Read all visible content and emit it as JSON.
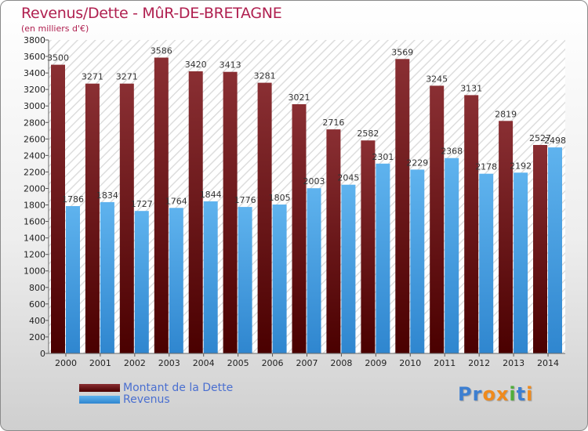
{
  "title": "Revenus/Dette - MûR-DE-BRETAGNE",
  "subtitle": "(en milliers d'€)",
  "colors": {
    "dette": "#7a1f1f",
    "revenus": "#4aa3e3",
    "title": "#b02050"
  },
  "legend": [
    {
      "label": "Montant de la Dette",
      "color": "#7a1f1f"
    },
    {
      "label": "Revenus",
      "color": "#4aa3e3"
    }
  ],
  "logo": "Proxiti",
  "chart_data": {
    "type": "bar",
    "categories": [
      "2000",
      "2001",
      "2002",
      "2003",
      "2004",
      "2005",
      "2006",
      "2007",
      "2008",
      "2009",
      "2010",
      "2011",
      "2012",
      "2013",
      "2014"
    ],
    "series": [
      {
        "name": "Montant de la Dette",
        "values": [
          3500,
          3271,
          3271,
          3586,
          3420,
          3413,
          3281,
          3021,
          2716,
          2582,
          3569,
          3245,
          3131,
          2819,
          2527
        ]
      },
      {
        "name": "Revenus",
        "values": [
          1786,
          1834,
          1727,
          1764,
          1844,
          1776,
          1805,
          2003,
          2045,
          2301,
          2229,
          2368,
          2178,
          2192,
          2498
        ]
      }
    ],
    "ylim": [
      0,
      3800
    ],
    "yticks": [
      0,
      200,
      400,
      600,
      800,
      1000,
      1200,
      1400,
      1600,
      1800,
      2000,
      2200,
      2400,
      2600,
      2800,
      3000,
      3200,
      3400,
      3600,
      3800
    ],
    "grid": false,
    "legend_position": "bottom-left"
  }
}
